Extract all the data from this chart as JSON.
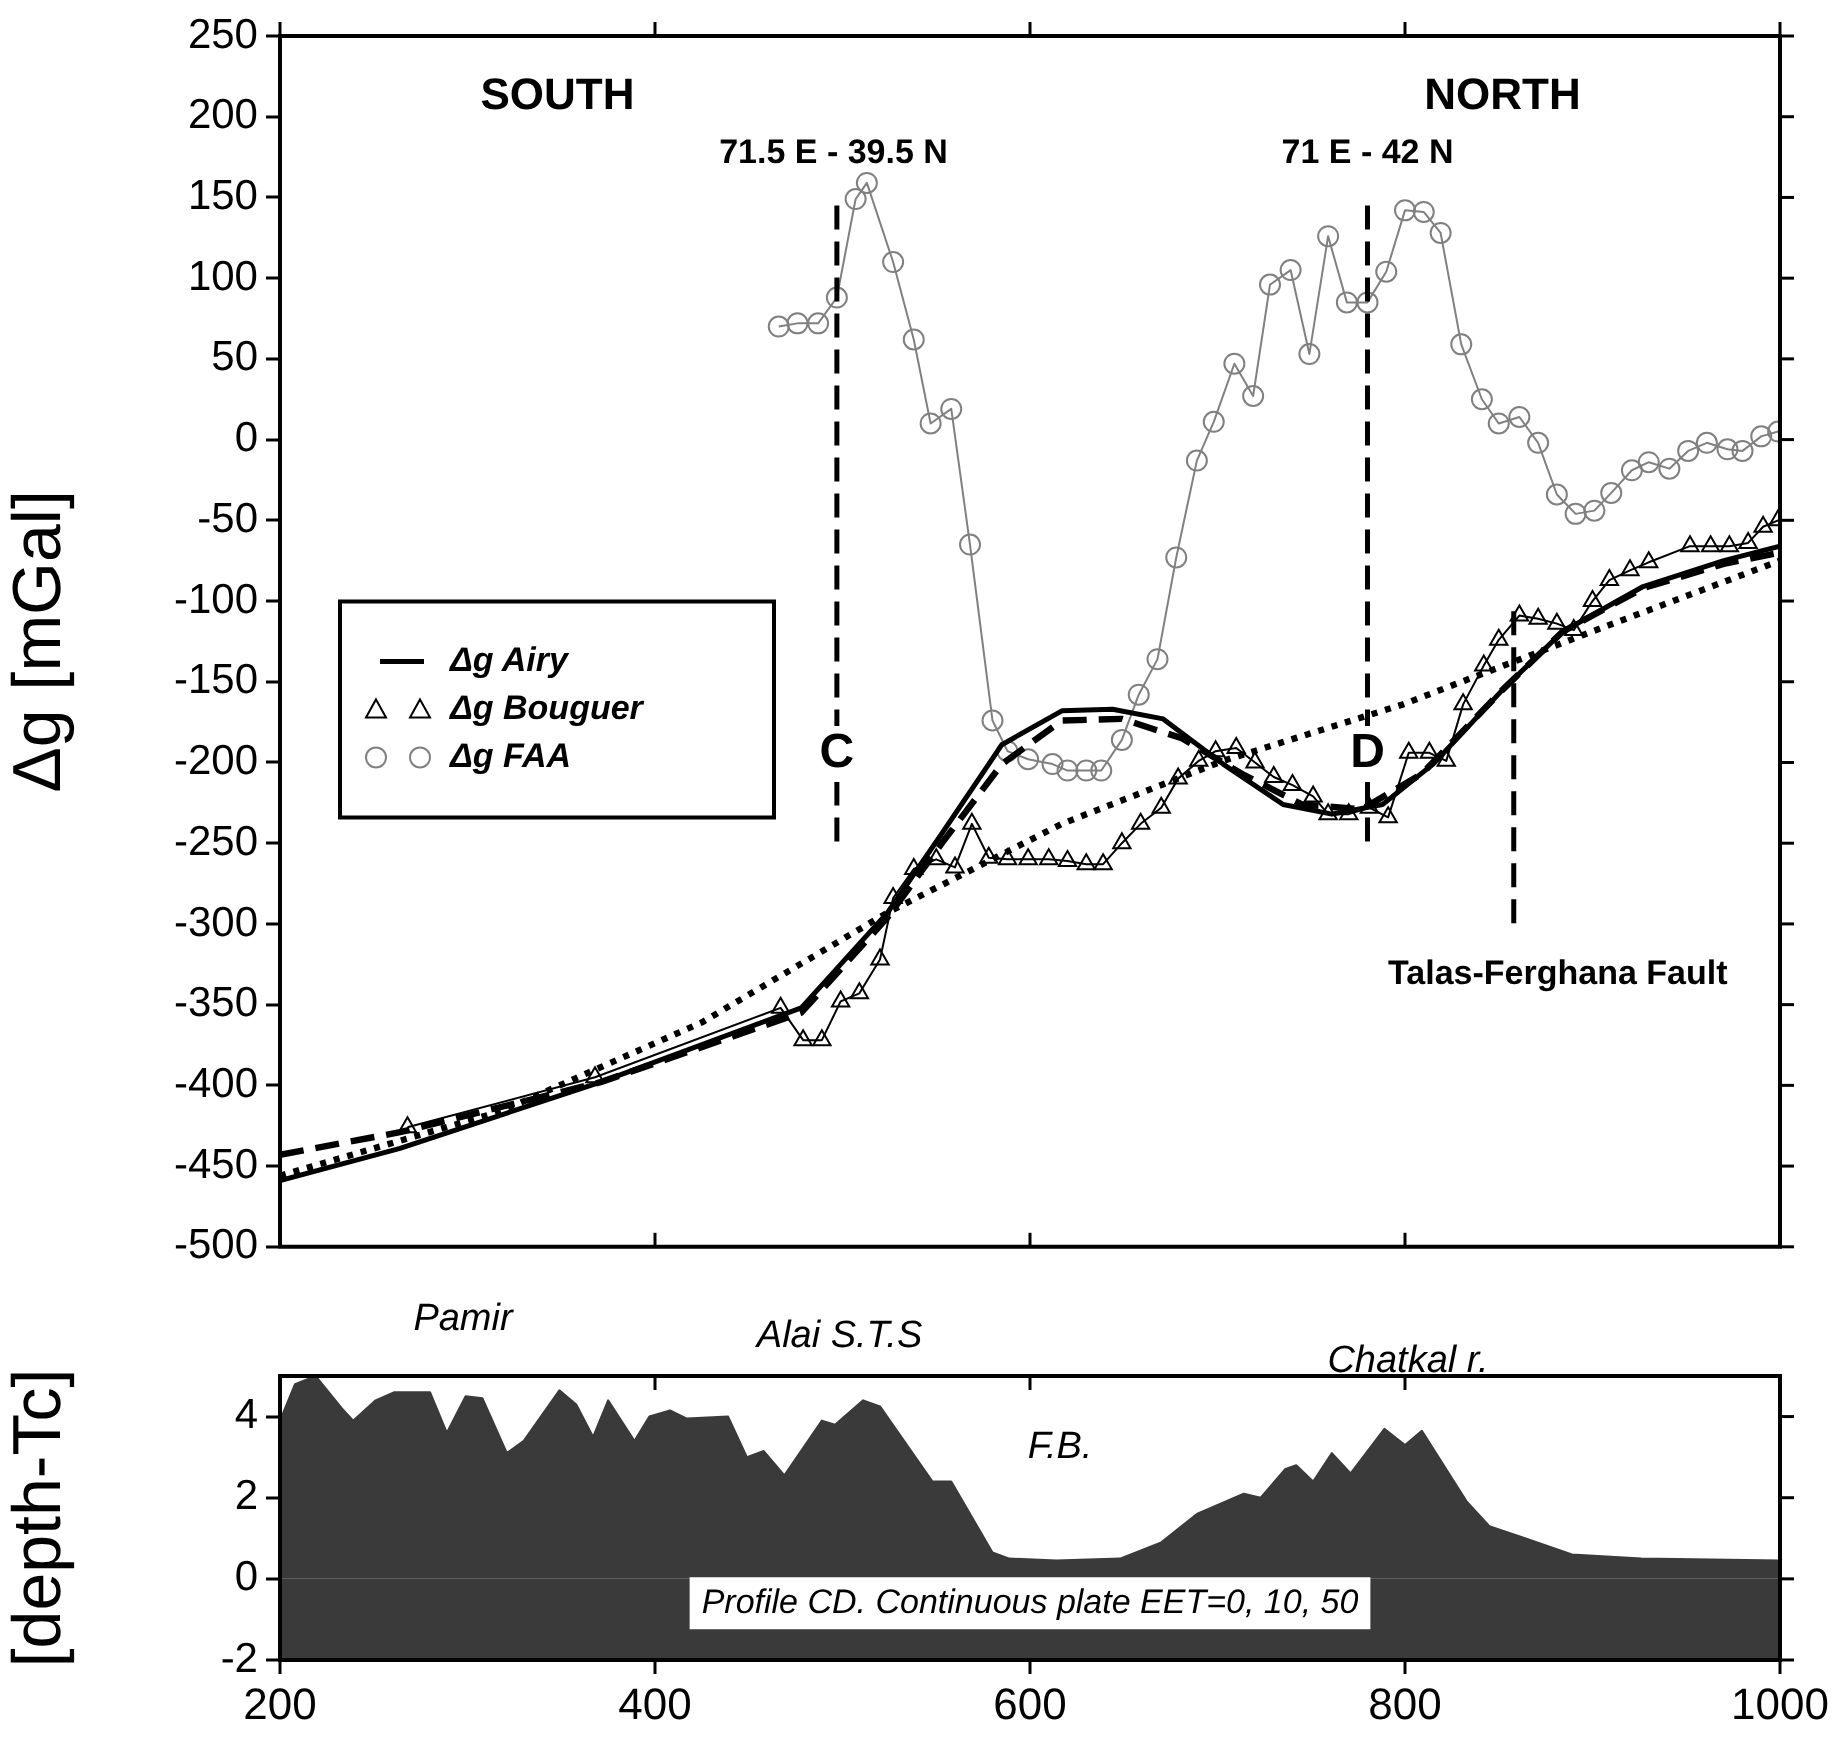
{
  "chart_data": [
    {
      "type": "line",
      "ylabel": "Δg [mGal]",
      "xlim": [
        200,
        1000
      ],
      "xticks": [
        200,
        400,
        600,
        800,
        1000
      ],
      "ylim": [
        -500,
        250
      ],
      "yticks": [
        -500,
        -450,
        -400,
        -350,
        -300,
        -250,
        -200,
        -150,
        -100,
        -50,
        0,
        50,
        100,
        150,
        200,
        250
      ],
      "tick_labels": "y",
      "grid": false,
      "legend": "left",
      "series": [
        {
          "name": "Δg Airy",
          "color": "#000000",
          "marker": "none",
          "line_style": "solid",
          "x": [
            200,
            264,
            371,
            478,
            524,
            553,
            585,
            617,
            644,
            671,
            703,
            735,
            761,
            788,
            815,
            852,
            884,
            927,
            970,
            1000
          ],
          "values": [
            -459,
            -439,
            -398,
            -352,
            -293,
            -244,
            -189,
            -168,
            -167,
            -173,
            -201,
            -226,
            -232,
            -226,
            -201,
            -155,
            -119,
            -91,
            -75,
            -66
          ]
        },
        {
          "color": "#000000",
          "marker": "none",
          "line_style": "dashed",
          "x": [
            200,
            264,
            371,
            478,
            524,
            553,
            585,
            617,
            649,
            681,
            713,
            745,
            777,
            809,
            852,
            884,
            927,
            970,
            1000
          ],
          "values": [
            -443,
            -429,
            -398,
            -355,
            -296,
            -250,
            -201,
            -174,
            -173,
            -185,
            -207,
            -226,
            -229,
            -207,
            -155,
            -119,
            -92,
            -77,
            -70
          ]
        },
        {
          "color": "#000000",
          "marker": "none",
          "line_style": "dotted",
          "x": [
            200,
            318,
            425,
            524,
            617,
            703,
            799,
            895,
            1000
          ],
          "values": [
            -456,
            -416,
            -361,
            -293,
            -238,
            -199,
            -164,
            -121,
            -75
          ]
        },
        {
          "name": "Δg Bouguer",
          "color": "#000000",
          "marker": "triangle",
          "line_style": "solid",
          "x": [
            268,
            368,
            467,
            479,
            489,
            499,
            509,
            520,
            527,
            538,
            550,
            560,
            569,
            578,
            588,
            599,
            610,
            620,
            630,
            639,
            649,
            659,
            670,
            679,
            690,
            699,
            710,
            720,
            730,
            740,
            751,
            759,
            770,
            781,
            791,
            802,
            813,
            822,
            831,
            842,
            850,
            861,
            871,
            881,
            890,
            900,
            909,
            920,
            930,
            952,
            963,
            973,
            983,
            991,
            999
          ],
          "values": [
            -426,
            -395,
            -352,
            -372,
            -372,
            -348,
            -343,
            -322,
            -284,
            -266,
            -260,
            -265,
            -238,
            -259,
            -260,
            -260,
            -260,
            -261,
            -263,
            -263,
            -250,
            -238,
            -228,
            -210,
            -199,
            -193,
            -191,
            -200,
            -209,
            -214,
            -221,
            -232,
            -232,
            -228,
            -234,
            -194,
            -194,
            -199,
            -164,
            -140,
            -124,
            -109,
            -111,
            -114,
            -118,
            -100,
            -87,
            -81,
            -76,
            -66,
            -66,
            -66,
            -64,
            -54,
            -50
          ]
        },
        {
          "name": "Δg FAA",
          "color": "#808080",
          "marker": "circle",
          "line_style": "solid",
          "x": [
            466,
            476,
            487,
            497,
            507,
            513,
            527,
            538,
            547,
            558,
            568,
            580,
            588,
            599,
            612,
            620,
            630,
            638,
            649,
            658,
            668,
            678,
            689,
            698,
            709,
            719,
            728,
            739,
            749,
            759,
            769,
            780,
            790,
            800,
            810,
            819,
            830,
            841,
            850,
            861,
            871,
            881,
            891,
            901,
            910,
            921,
            930,
            941,
            951,
            961,
            972,
            980,
            990,
            999
          ],
          "values": [
            70,
            72,
            72,
            88,
            149,
            159,
            110,
            62,
            10,
            19,
            -65,
            -174,
            -193,
            -198,
            -201,
            -205,
            -205,
            -205,
            -186,
            -158,
            -136,
            -73,
            -13,
            11,
            47,
            27,
            96,
            105,
            53,
            126,
            85,
            85,
            104,
            142,
            141,
            128,
            59,
            25,
            10,
            14,
            -2,
            -34,
            -46,
            -44,
            -33,
            -19,
            -14,
            -18,
            -7,
            -2,
            -6,
            -7,
            2,
            5
          ]
        }
      ],
      "ref_lines": [
        {
          "axis": "x",
          "value": 497,
          "label": "C",
          "line_style": "dashed"
        },
        {
          "axis": "x",
          "value": 780,
          "label": "D",
          "line_style": "dashed"
        },
        {
          "axis": "x",
          "value": 858,
          "label": "Talas-Ferghana Fault",
          "line_style": "dashed"
        }
      ],
      "annotations": [
        "SOUTH",
        "NORTH",
        "71.5 E - 39.5 N",
        "71 E - 42 N"
      ]
    },
    {
      "type": "area",
      "ylabel": "[depth-Tc]",
      "xlim": [
        200,
        1000
      ],
      "xticks": [
        200,
        400,
        600,
        800,
        1000
      ],
      "ylim": [
        -2,
        5
      ],
      "yticks": [
        -2,
        0,
        2,
        4
      ],
      "grid": false,
      "x": [
        200,
        208,
        219,
        233,
        239,
        251,
        261,
        280,
        289,
        299,
        308,
        321,
        330,
        349,
        358,
        367,
        375,
        389,
        397,
        408,
        417,
        439,
        449,
        458,
        469,
        489,
        496,
        511,
        520,
        548,
        558,
        580,
        589,
        614,
        648,
        670,
        689,
        714,
        723,
        736,
        742,
        751,
        761,
        771,
        789,
        800,
        809,
        833,
        845,
        864,
        889,
        926,
        1000
      ],
      "color": "#3a3a3a",
      "values": [
        3.9,
        4.8,
        5.0,
        4.2,
        3.9,
        4.4,
        4.6,
        4.6,
        3.6,
        4.5,
        4.45,
        3.1,
        3.4,
        4.65,
        4.3,
        3.5,
        4.4,
        3.4,
        4.0,
        4.15,
        3.95,
        4.0,
        3.0,
        3.15,
        2.55,
        3.9,
        3.8,
        4.4,
        4.25,
        2.4,
        2.4,
        0.65,
        0.5,
        0.45,
        0.5,
        0.9,
        1.6,
        2.1,
        2.0,
        2.7,
        2.8,
        2.4,
        3.1,
        2.6,
        3.7,
        3.3,
        3.65,
        1.9,
        1.3,
        1.0,
        0.6,
        0.5,
        0.45
      ],
      "bands": [
        {
          "axis": "y",
          "from": -2,
          "to": 0,
          "color": "#3a3a3a"
        }
      ],
      "annotations": [
        "Pamir",
        "Alai S.T.S",
        "F.B.",
        "Chatkal r.",
        "Profile CD. Continuous plate EET=0, 10, 50"
      ]
    }
  ]
}
